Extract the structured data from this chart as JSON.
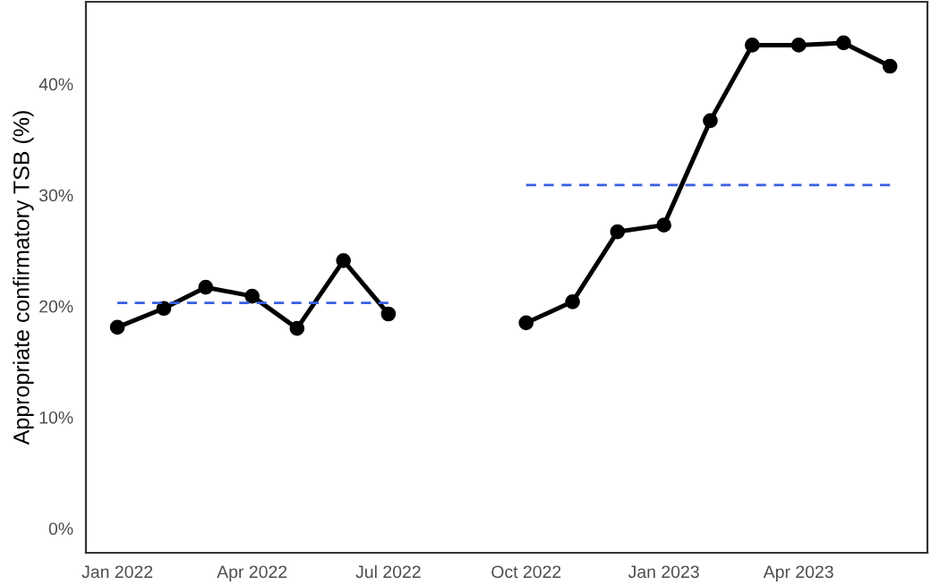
{
  "chart_data": {
    "type": "line",
    "ylabel": "Appropriate confirmatory TSB (%)",
    "x": [
      "2022-01",
      "2022-02",
      "2022-03",
      "2022-04",
      "2022-05",
      "2022-06",
      "2022-07",
      "2022-08",
      "2022-09",
      "2022-10",
      "2022-11",
      "2022-12",
      "2023-01",
      "2023-02",
      "2023-03",
      "2023-04",
      "2023-05",
      "2023-06"
    ],
    "series": [
      {
        "color": "#000000",
        "marker": "circle",
        "line_style": "solid",
        "values": [
          18.1,
          19.8,
          21.7,
          20.9,
          18.0,
          24.1,
          19.3,
          null,
          null,
          18.5,
          20.4,
          26.7,
          27.3,
          36.7,
          43.5,
          43.5,
          43.7,
          41.6
        ]
      },
      {
        "type": "line",
        "color": "#3a5fe0",
        "marker": "none",
        "line_style": "dashed",
        "x": [
          "2022-01",
          "2022-07"
        ],
        "values": [
          20.3,
          20.3
        ]
      },
      {
        "type": "line",
        "color": "#3a5fe0",
        "marker": "none",
        "line_style": "dashed",
        "x": [
          "2022-10",
          "2023-06"
        ],
        "values": [
          30.9,
          30.9
        ]
      }
    ],
    "xlim": [
      "2021-12-11",
      "2023-06-26"
    ],
    "xticks": [
      {
        "value": "2022-01",
        "label": "Jan 2022"
      },
      {
        "value": "2022-04",
        "label": "Apr 2022"
      },
      {
        "value": "2022-07",
        "label": "Jul 2022"
      },
      {
        "value": "2022-10",
        "label": "Oct 2022"
      },
      {
        "value": "2023-01",
        "label": "Jan 2023"
      },
      {
        "value": "2023-04",
        "label": "Apr 2023"
      }
    ],
    "ylim": [
      -2.2,
      47.4
    ],
    "yticks": [
      {
        "value": 0,
        "label": "0%"
      },
      {
        "value": 10,
        "label": "10%"
      },
      {
        "value": 20,
        "label": "20%"
      },
      {
        "value": 30,
        "label": "30%"
      },
      {
        "value": 40,
        "label": "40%"
      }
    ],
    "grid": false,
    "legend": false
  }
}
